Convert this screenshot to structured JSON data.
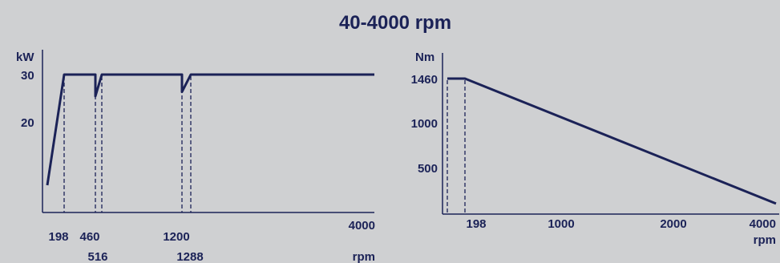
{
  "title": "40-4000 rpm",
  "colors": {
    "ink": "#1b2257",
    "background": "#cfd0d2"
  },
  "chart_data": [
    {
      "type": "line",
      "ylabel": "kW",
      "xlabel": "rpm",
      "y_ticks": [
        "30",
        "20"
      ],
      "x_ticks_row1": [
        "198",
        "460",
        "1200"
      ],
      "x_ticks_row2": [
        "516",
        "1288"
      ],
      "x_axis_end_label": "4000",
      "series": [
        {
          "points": [
            [
              40,
              6
            ],
            [
              198,
              30
            ],
            [
              460,
              30
            ],
            [
              460,
              25
            ],
            [
              516,
              30
            ],
            [
              1200,
              30
            ],
            [
              1200,
              26
            ],
            [
              1288,
              30
            ],
            [
              4000,
              30
            ]
          ]
        }
      ],
      "guides": [
        198,
        460,
        516,
        1200,
        1288
      ]
    },
    {
      "type": "line",
      "ylabel": "Nm",
      "xlabel": "rpm",
      "y_ticks": [
        "1460",
        "1000",
        "500"
      ],
      "x_ticks": [
        "198",
        "1000",
        "2000",
        "4000"
      ],
      "series": [
        {
          "points": [
            [
              40,
              1460
            ],
            [
              198,
              1460
            ],
            [
              4000,
              115
            ]
          ]
        }
      ],
      "guides": [
        40,
        198
      ]
    }
  ]
}
